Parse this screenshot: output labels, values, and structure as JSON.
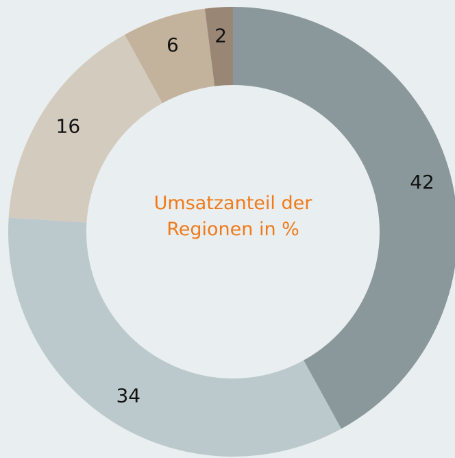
{
  "chart_data": {
    "type": "donut",
    "title": "Umsatzanteil der Regionen in %",
    "values": [
      42,
      34,
      16,
      6,
      2
    ],
    "colors": [
      "#8a979b",
      "#bcc9cc",
      "#d4cbbf",
      "#c4b39c",
      "#9a8674"
    ],
    "title_color": "#f07a1a"
  }
}
